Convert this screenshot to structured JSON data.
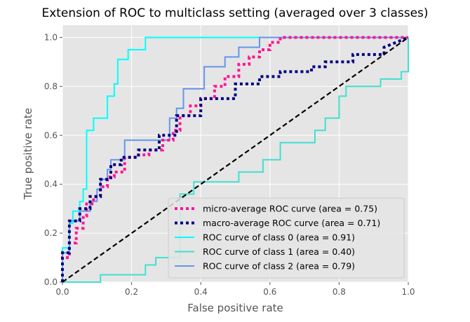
{
  "chart_data": {
    "type": "line",
    "title": "Extension of ROC to multiclass setting (averaged over 3 classes)",
    "xlabel": "False positive rate",
    "ylabel": "True positive rate",
    "xlim": [
      0.0,
      1.0
    ],
    "ylim": [
      0.0,
      1.05
    ],
    "x_ticks": [
      "0.0",
      "0.2",
      "0.4",
      "0.6",
      "0.8",
      "1.0"
    ],
    "y_ticks": [
      "0.0",
      "0.2",
      "0.4",
      "0.6",
      "0.8",
      "1.0"
    ],
    "grid": true,
    "legend_position": "lower-right",
    "background": "#e5e5e5",
    "series": [
      {
        "name": "micro-average ROC curve (area = 0.75)",
        "color": "#ff1493",
        "style": "dotted",
        "x": [
          0.0,
          0.0,
          0.02,
          0.02,
          0.04,
          0.04,
          0.06,
          0.06,
          0.07,
          0.07,
          0.09,
          0.09,
          0.11,
          0.11,
          0.13,
          0.13,
          0.15,
          0.15,
          0.18,
          0.18,
          0.21,
          0.21,
          0.25,
          0.25,
          0.29,
          0.29,
          0.32,
          0.32,
          0.34,
          0.34,
          0.37,
          0.37,
          0.4,
          0.4,
          0.44,
          0.44,
          0.47,
          0.47,
          0.51,
          0.51,
          0.54,
          0.54,
          0.57,
          0.57,
          0.6,
          0.6,
          0.63,
          0.63,
          0.73,
          0.73,
          0.84,
          0.84,
          1.0
        ],
        "y": [
          0.0,
          0.1,
          0.1,
          0.16,
          0.16,
          0.22,
          0.22,
          0.27,
          0.27,
          0.32,
          0.32,
          0.35,
          0.35,
          0.39,
          0.39,
          0.43,
          0.43,
          0.45,
          0.45,
          0.51,
          0.51,
          0.52,
          0.52,
          0.54,
          0.54,
          0.58,
          0.58,
          0.62,
          0.62,
          0.68,
          0.68,
          0.72,
          0.72,
          0.75,
          0.75,
          0.8,
          0.8,
          0.84,
          0.84,
          0.89,
          0.89,
          0.92,
          0.92,
          0.95,
          0.95,
          0.98,
          0.98,
          1.0,
          1.0,
          1.0,
          1.0,
          1.0,
          1.0
        ]
      },
      {
        "name": "macro-average ROC curve (area = 0.71)",
        "color": "#000080",
        "style": "dotted",
        "x": [
          0.0,
          0.0,
          0.02,
          0.02,
          0.05,
          0.05,
          0.08,
          0.08,
          0.11,
          0.11,
          0.14,
          0.14,
          0.17,
          0.17,
          0.22,
          0.22,
          0.28,
          0.28,
          0.33,
          0.33,
          0.4,
          0.4,
          0.5,
          0.5,
          0.57,
          0.57,
          0.63,
          0.63,
          0.72,
          0.72,
          0.76,
          0.76,
          0.84,
          0.84,
          0.93,
          0.93,
          1.0
        ],
        "y": [
          0.0,
          0.12,
          0.12,
          0.25,
          0.25,
          0.3,
          0.3,
          0.35,
          0.35,
          0.42,
          0.42,
          0.48,
          0.48,
          0.51,
          0.51,
          0.54,
          0.54,
          0.6,
          0.6,
          0.68,
          0.68,
          0.75,
          0.75,
          0.81,
          0.81,
          0.84,
          0.84,
          0.86,
          0.86,
          0.88,
          0.88,
          0.9,
          0.9,
          0.93,
          0.93,
          0.96,
          1.0
        ]
      },
      {
        "name": "ROC curve of class 0 (area = 0.91)",
        "color": "#00ffff",
        "style": "solid",
        "x": [
          0.0,
          0.0,
          0.02,
          0.02,
          0.03,
          0.03,
          0.05,
          0.05,
          0.06,
          0.06,
          0.07,
          0.07,
          0.09,
          0.09,
          0.13,
          0.13,
          0.15,
          0.15,
          0.16,
          0.16,
          0.19,
          0.19,
          0.24,
          0.24,
          0.28,
          0.28,
          1.0
        ],
        "y": [
          0.0,
          0.14,
          0.14,
          0.24,
          0.24,
          0.29,
          0.29,
          0.33,
          0.33,
          0.38,
          0.38,
          0.62,
          0.62,
          0.67,
          0.67,
          0.76,
          0.76,
          0.81,
          0.81,
          0.91,
          0.91,
          0.95,
          0.95,
          1.0,
          1.0,
          1.0,
          1.0
        ]
      },
      {
        "name": "ROC curve of class 1 (area = 0.40)",
        "color": "#40e0d0",
        "style": "solid",
        "x": [
          0.0,
          0.11,
          0.11,
          0.24,
          0.24,
          0.27,
          0.27,
          0.34,
          0.34,
          0.38,
          0.38,
          0.51,
          0.51,
          0.58,
          0.58,
          0.63,
          0.63,
          0.73,
          0.73,
          0.76,
          0.76,
          0.8,
          0.8,
          0.82,
          0.82,
          0.92,
          0.92,
          0.98,
          0.98,
          1.0,
          1.0
        ],
        "y": [
          0.0,
          0.0,
          0.03,
          0.03,
          0.07,
          0.07,
          0.1,
          0.1,
          0.36,
          0.36,
          0.41,
          0.41,
          0.45,
          0.45,
          0.5,
          0.5,
          0.57,
          0.57,
          0.62,
          0.62,
          0.67,
          0.67,
          0.76,
          0.76,
          0.8,
          0.8,
          0.83,
          0.83,
          0.86,
          0.86,
          1.0
        ]
      },
      {
        "name": "ROC curve of class 2 (area = 0.79)",
        "color": "#6495ed",
        "style": "solid",
        "x": [
          0.0,
          0.0,
          0.02,
          0.02,
          0.05,
          0.05,
          0.08,
          0.08,
          0.1,
          0.1,
          0.11,
          0.11,
          0.13,
          0.13,
          0.14,
          0.14,
          0.18,
          0.18,
          0.31,
          0.31,
          0.33,
          0.33,
          0.35,
          0.35,
          0.41,
          0.41,
          0.47,
          0.47,
          0.51,
          0.51,
          0.57,
          0.57,
          1.0
        ],
        "y": [
          0.0,
          0.12,
          0.12,
          0.25,
          0.25,
          0.29,
          0.29,
          0.33,
          0.33,
          0.38,
          0.38,
          0.42,
          0.42,
          0.46,
          0.46,
          0.5,
          0.5,
          0.58,
          0.58,
          0.67,
          0.67,
          0.71,
          0.71,
          0.79,
          0.79,
          0.88,
          0.88,
          0.92,
          0.92,
          0.96,
          0.96,
          1.0,
          1.0
        ]
      }
    ],
    "reference_line": {
      "color": "#000000",
      "style": "dashed",
      "x": [
        0.0,
        1.0
      ],
      "y": [
        0.0,
        1.0
      ]
    }
  }
}
